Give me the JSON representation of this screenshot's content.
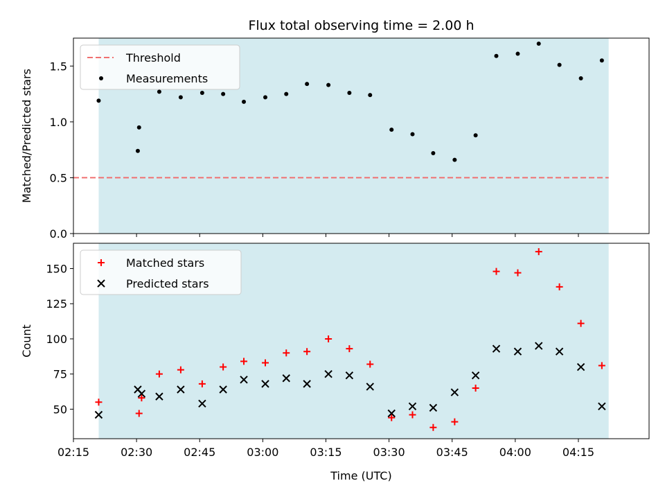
{
  "chart_data": [
    {
      "type": "scatter",
      "title": "Flux total observing time = 2.00 h",
      "xlabel": "",
      "ylabel": "Matched/Predicted stars",
      "xlim_min": [
        2.25,
        4.53
      ],
      "ylim": [
        0,
        1.75
      ],
      "yticks": [
        0.0,
        0.5,
        1.0,
        1.5
      ],
      "ytick_labels": [
        "0.0",
        "0.5",
        "1.0",
        "1.5"
      ],
      "xticks_min": [
        2.25,
        2.5,
        2.75,
        3.0,
        3.25,
        3.5,
        3.75,
        4.0,
        4.25
      ],
      "shaded_span": [
        2.35,
        4.37
      ],
      "shade_color": "#d4ebf0",
      "legend_position": "upper left",
      "threshold": {
        "name": "Threshold",
        "value": 0.5,
        "color": "#f07070"
      },
      "series": [
        {
          "name": "Measurements",
          "color": "#000000",
          "marker": "dot",
          "points": [
            [
              2.35,
              1.19
            ],
            [
              2.505,
              0.74
            ],
            [
              2.51,
              0.95
            ],
            [
              2.59,
              1.27
            ],
            [
              2.675,
              1.22
            ],
            [
              2.76,
              1.26
            ],
            [
              2.843,
              1.25
            ],
            [
              2.925,
              1.18
            ],
            [
              3.01,
              1.22
            ],
            [
              3.093,
              1.25
            ],
            [
              3.175,
              1.34
            ],
            [
              3.26,
              1.33
            ],
            [
              3.343,
              1.26
            ],
            [
              3.425,
              1.24
            ],
            [
              3.51,
              0.93
            ],
            [
              3.593,
              0.89
            ],
            [
              3.675,
              0.72
            ],
            [
              3.76,
              0.66
            ],
            [
              3.843,
              0.88
            ],
            [
              3.925,
              1.59
            ],
            [
              4.01,
              1.61
            ],
            [
              4.093,
              1.7
            ],
            [
              4.175,
              1.51
            ],
            [
              4.26,
              1.39
            ],
            [
              4.343,
              1.55
            ]
          ]
        }
      ]
    },
    {
      "type": "scatter",
      "title": "",
      "xlabel": "Time (UTC)",
      "ylabel": "Count",
      "xlim_min": [
        2.25,
        4.53
      ],
      "ylim": [
        29,
        168
      ],
      "yticks": [
        50,
        75,
        100,
        125,
        150
      ],
      "ytick_labels": [
        "50",
        "75",
        "100",
        "125",
        "150"
      ],
      "xticks_min": [
        2.25,
        2.5,
        2.75,
        3.0,
        3.25,
        3.5,
        3.75,
        4.0,
        4.25
      ],
      "xtick_labels": [
        "02:15",
        "02:30",
        "02:45",
        "03:00",
        "03:15",
        "03:30",
        "03:45",
        "04:00",
        "04:15"
      ],
      "shaded_span": [
        2.35,
        4.37
      ],
      "shade_color": "#d4ebf0",
      "legend_position": "upper left",
      "series": [
        {
          "name": "Matched stars",
          "color": "#ff0000",
          "marker": "plus",
          "points": [
            [
              2.35,
              55
            ],
            [
              2.51,
              47
            ],
            [
              2.52,
              58
            ],
            [
              2.59,
              75
            ],
            [
              2.675,
              78
            ],
            [
              2.76,
              68
            ],
            [
              2.843,
              80
            ],
            [
              2.925,
              84
            ],
            [
              3.01,
              83
            ],
            [
              3.093,
              90
            ],
            [
              3.175,
              91
            ],
            [
              3.26,
              100
            ],
            [
              3.343,
              93
            ],
            [
              3.425,
              82
            ],
            [
              3.51,
              44
            ],
            [
              3.593,
              46
            ],
            [
              3.675,
              37
            ],
            [
              3.76,
              41
            ],
            [
              3.843,
              65
            ],
            [
              3.925,
              148
            ],
            [
              4.01,
              147
            ],
            [
              4.093,
              162
            ],
            [
              4.175,
              137
            ],
            [
              4.26,
              111
            ],
            [
              4.343,
              81
            ]
          ]
        },
        {
          "name": "Predicted stars",
          "color": "#000000",
          "marker": "x",
          "points": [
            [
              2.35,
              46
            ],
            [
              2.505,
              64
            ],
            [
              2.52,
              61
            ],
            [
              2.59,
              59
            ],
            [
              2.675,
              64
            ],
            [
              2.76,
              54
            ],
            [
              2.843,
              64
            ],
            [
              2.925,
              71
            ],
            [
              3.01,
              68
            ],
            [
              3.093,
              72
            ],
            [
              3.175,
              68
            ],
            [
              3.26,
              75
            ],
            [
              3.343,
              74
            ],
            [
              3.425,
              66
            ],
            [
              3.51,
              47
            ],
            [
              3.593,
              52
            ],
            [
              3.675,
              51
            ],
            [
              3.76,
              62
            ],
            [
              3.843,
              74
            ],
            [
              3.925,
              93
            ],
            [
              4.01,
              91
            ],
            [
              4.093,
              95
            ],
            [
              4.175,
              91
            ],
            [
              4.26,
              80
            ],
            [
              4.343,
              52
            ]
          ]
        }
      ]
    }
  ]
}
